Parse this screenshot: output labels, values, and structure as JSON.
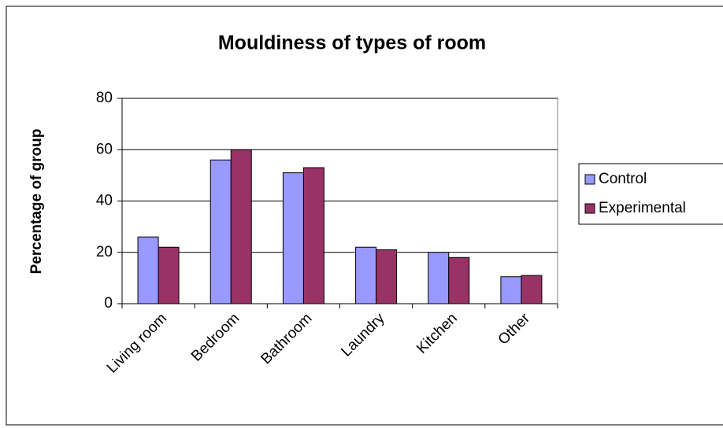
{
  "chart_data": {
    "type": "bar",
    "title": "Mouldiness of types of room",
    "y_label": "Percentage of group",
    "categories": [
      "Living room",
      "Bedroom",
      "Bathroom",
      "Laundry",
      "Kitchen",
      "Other"
    ],
    "series": [
      {
        "name": "Control",
        "color": "#9999ff",
        "values": [
          26,
          56,
          51,
          22,
          20,
          10.5
        ]
      },
      {
        "name": "Experimental",
        "color": "#993366",
        "values": [
          22,
          60,
          53,
          21,
          18,
          11
        ]
      }
    ],
    "ylim": [
      0,
      80
    ],
    "yticks": [
      0,
      20,
      40,
      60,
      80
    ],
    "grid": true,
    "legend": "right"
  }
}
